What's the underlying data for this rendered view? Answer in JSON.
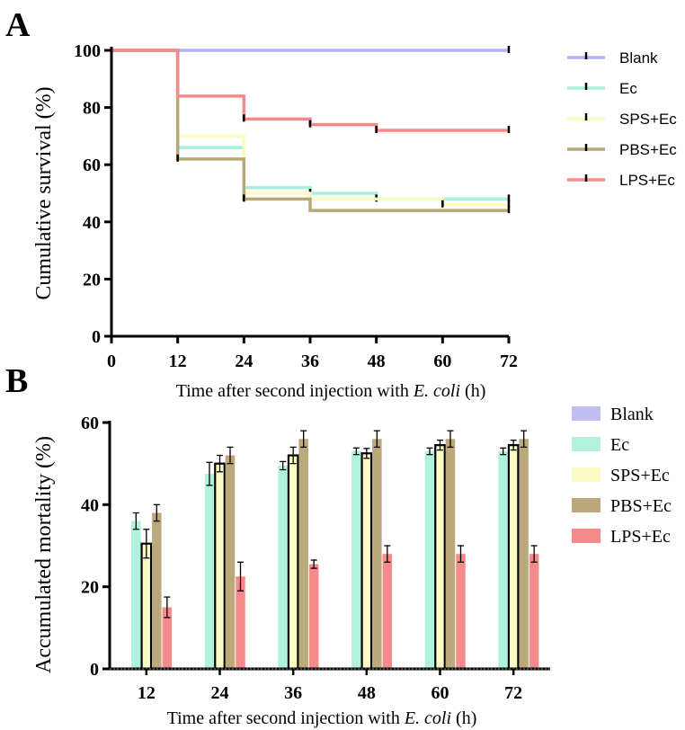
{
  "panels": {
    "a": "A",
    "b": "B"
  },
  "chart_data": [
    {
      "type": "line",
      "step": true,
      "title": "",
      "xlabel_prefix": "Time after second injection with ",
      "xlabel_italic": "E. coli",
      "xlabel_suffix": " (h)",
      "ylabel": "Cumulative survival (%)",
      "xlim": [
        0,
        72
      ],
      "ylim": [
        0,
        100
      ],
      "xticks": [
        0,
        12,
        24,
        36,
        48,
        60,
        72
      ],
      "yticks": [
        0,
        20,
        40,
        60,
        80,
        100
      ],
      "legend_position": "right",
      "series": [
        {
          "name": "Blank",
          "color": "#b3b3f2",
          "x": [
            0,
            72
          ],
          "y": [
            100,
            100
          ],
          "censor": [
            {
              "x": 72,
              "y": 100
            }
          ]
        },
        {
          "name": "Ec",
          "color": "#a8f0d8",
          "x": [
            0,
            12,
            24,
            36,
            48,
            72
          ],
          "y": [
            100,
            66,
            52,
            50,
            48,
            48
          ],
          "censor": [
            {
              "x": 12,
              "y": 66
            },
            {
              "x": 24,
              "y": 52
            },
            {
              "x": 36,
              "y": 50
            },
            {
              "x": 48,
              "y": 48
            },
            {
              "x": 72,
              "y": 48
            }
          ]
        },
        {
          "name": "SPS+Ec",
          "color": "#fbfbc0",
          "x": [
            0,
            12,
            24,
            36,
            60,
            72
          ],
          "y": [
            100,
            70,
            50,
            48,
            46,
            46
          ],
          "censor": [
            {
              "x": 24,
              "y": 50
            },
            {
              "x": 60,
              "y": 46
            },
            {
              "x": 72,
              "y": 46
            }
          ]
        },
        {
          "name": "PBS+Ec",
          "color": "#b8a878",
          "x": [
            0,
            12,
            24,
            36,
            72
          ],
          "y": [
            100,
            62,
            48,
            44,
            44
          ],
          "censor": [
            {
              "x": 12,
              "y": 62
            },
            {
              "x": 24,
              "y": 48
            },
            {
              "x": 72,
              "y": 44
            }
          ]
        },
        {
          "name": "LPS+Ec",
          "color": "#f48a8a",
          "x": [
            0,
            12,
            24,
            36,
            48,
            72
          ],
          "y": [
            100,
            84,
            76,
            74,
            72,
            72
          ],
          "censor": [
            {
              "x": 24,
              "y": 76
            },
            {
              "x": 36,
              "y": 74
            },
            {
              "x": 48,
              "y": 72
            },
            {
              "x": 72,
              "y": 72
            }
          ]
        }
      ]
    },
    {
      "type": "bar",
      "title": "",
      "xlabel_prefix": "Time after second injection with ",
      "xlabel_italic": "E. coli",
      "xlabel_suffix": " (h)",
      "ylabel": "Accumulated mortality (%)",
      "categories": [
        "12",
        "24",
        "36",
        "48",
        "60",
        "72"
      ],
      "ylim": [
        0,
        60
      ],
      "yticks": [
        0,
        20,
        40,
        60
      ],
      "legend_position": "right",
      "series": [
        {
          "name": "Blank",
          "color": "#c0c0f0",
          "values": [
            0,
            0,
            0,
            0,
            0,
            0
          ],
          "errors": [
            0,
            0,
            0,
            0,
            0,
            0
          ]
        },
        {
          "name": "Ec",
          "color": "#b0f2dc",
          "values": [
            36,
            47.5,
            49.5,
            53,
            53,
            53
          ],
          "errors": [
            2,
            2.8,
            1,
            0.8,
            0.8,
            0.8
          ]
        },
        {
          "name": "SPS+Ec",
          "color": "#fbfbc4",
          "values": [
            30.5,
            50,
            52,
            52.5,
            54.5,
            54.5
          ],
          "errors": [
            3.5,
            2,
            2,
            1.2,
            1.2,
            1.2
          ]
        },
        {
          "name": "PBS+Ec",
          "color": "#bba97b",
          "values": [
            38,
            52,
            56,
            56,
            56,
            56
          ],
          "errors": [
            2,
            2,
            2,
            2,
            2,
            2
          ]
        },
        {
          "name": "LPS+Ec",
          "color": "#f58a8a",
          "values": [
            15,
            22.5,
            25.5,
            28,
            28,
            28
          ],
          "errors": [
            2.5,
            3.5,
            1,
            2,
            2,
            2
          ]
        }
      ]
    }
  ]
}
